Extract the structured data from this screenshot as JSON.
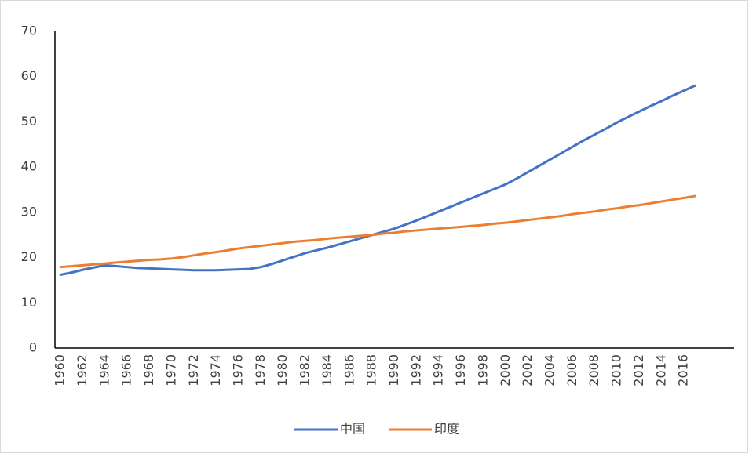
{
  "chart_data": {
    "type": "line",
    "categories": [
      "1960",
      null,
      "1962",
      null,
      "1964",
      null,
      "1966",
      null,
      "1968",
      null,
      "1970",
      null,
      "1972",
      null,
      "1974",
      null,
      "1976",
      null,
      "1978",
      null,
      "1980",
      null,
      "1982",
      null,
      "1984",
      null,
      "1986",
      null,
      "1988",
      null,
      "1990",
      null,
      "1992",
      null,
      "1994",
      null,
      "1996",
      null,
      "1998",
      null,
      "2000",
      null,
      "2002",
      null,
      "2004",
      null,
      "2006",
      null,
      "2008",
      null,
      "2010",
      null,
      "2012",
      null,
      "2014",
      null,
      "2016",
      null,
      null,
      null,
      null
    ],
    "series": [
      {
        "name": "中国",
        "color": "#4472c4",
        "values": [
          16.2,
          16.7,
          17.3,
          17.8,
          18.3,
          18.1,
          17.9,
          17.7,
          17.6,
          17.5,
          17.4,
          17.3,
          17.2,
          17.2,
          17.2,
          17.3,
          17.4,
          17.5,
          17.9,
          18.6,
          19.4,
          20.2,
          21.0,
          21.6,
          22.2,
          22.9,
          23.6,
          24.3,
          25.0,
          25.7,
          26.4,
          27.3,
          28.2,
          29.2,
          30.2,
          31.2,
          32.2,
          33.2,
          34.2,
          35.2,
          36.2,
          37.5,
          38.9,
          40.3,
          41.7,
          43.1,
          44.5,
          45.9,
          47.2,
          48.5,
          49.9,
          51.1,
          52.3,
          53.5,
          54.6,
          55.8,
          56.9,
          58.0,
          null,
          null,
          null
        ]
      },
      {
        "name": "印度",
        "color": "#ed7d31",
        "values": [
          17.9,
          18.1,
          18.3,
          18.5,
          18.7,
          18.9,
          19.1,
          19.3,
          19.5,
          19.6,
          19.8,
          20.1,
          20.5,
          20.9,
          21.2,
          21.6,
          22.0,
          22.3,
          22.6,
          22.9,
          23.2,
          23.5,
          23.7,
          23.9,
          24.2,
          24.4,
          24.6,
          24.8,
          25.0,
          25.3,
          25.5,
          25.8,
          26.0,
          26.2,
          26.4,
          26.6,
          26.8,
          27.0,
          27.2,
          27.5,
          27.7,
          28.0,
          28.3,
          28.6,
          28.9,
          29.2,
          29.6,
          29.9,
          30.2,
          30.6,
          30.9,
          31.3,
          31.6,
          32.0,
          32.4,
          32.8,
          33.2,
          33.6,
          null,
          null,
          null
        ]
      }
    ],
    "ylim": [
      0,
      70
    ],
    "yticks": [
      0,
      10,
      20,
      30,
      40,
      50,
      60,
      70
    ],
    "grid": false,
    "legend": "bottom"
  }
}
